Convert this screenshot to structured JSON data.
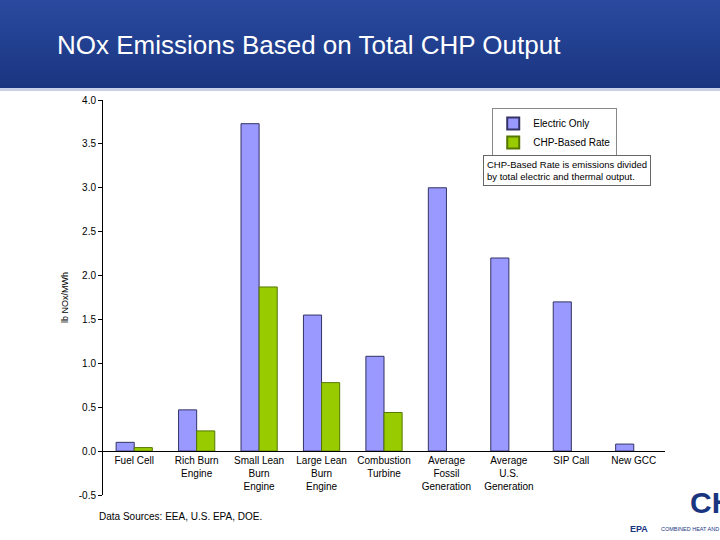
{
  "chart_data": {
    "type": "bar",
    "title": "NOx Emissions Based on Total CHP Output",
    "y_label": "lb NOx/MWh",
    "categories": [
      "Fuel Cell",
      "Rich Burn\nEngine",
      "Small Lean\nBurn\nEngine",
      "Large Lean\nBurn\nEngine",
      "Combustion\nTurbine",
      "Average\nFossil\nGeneration",
      "Average\nU.S.\nGeneration",
      "SIP Call",
      "New GCC"
    ],
    "series": [
      {
        "name": "Electric Only",
        "color": "#9999ff",
        "values": [
          0.1,
          0.47,
          3.73,
          1.55,
          1.08,
          3.0,
          2.2,
          1.7,
          0.08
        ]
      },
      {
        "name": "CHP-Based Rate",
        "color": "#99cc00",
        "values": [
          0.04,
          0.23,
          1.87,
          0.78,
          0.44,
          null,
          null,
          null,
          null
        ]
      }
    ],
    "ylim": [
      -0.5,
      4.0
    ],
    "yticks": [
      -0.5,
      {
        "value": 0,
        "label": "0.0"
      },
      0.5,
      {
        "value": 1,
        "label": "1.0"
      },
      1.5,
      {
        "value": 2,
        "label": "2.0"
      },
      2.5,
      {
        "value": 3,
        "label": "3.0"
      },
      3.5,
      {
        "value": 4,
        "label": "4.0"
      }
    ],
    "grid": false,
    "legend": "upper right",
    "annotations": [
      "CHP-Based Rate is emissions divided\nby total electric and thermal output."
    ],
    "source": "Data Sources: EEA, U.S. EPA, DOE.",
    "logo": {
      "mark": "CHP",
      "agency": "EPA",
      "name": "COMBINED HEAT AND POWER PARTNERSHIP"
    }
  }
}
